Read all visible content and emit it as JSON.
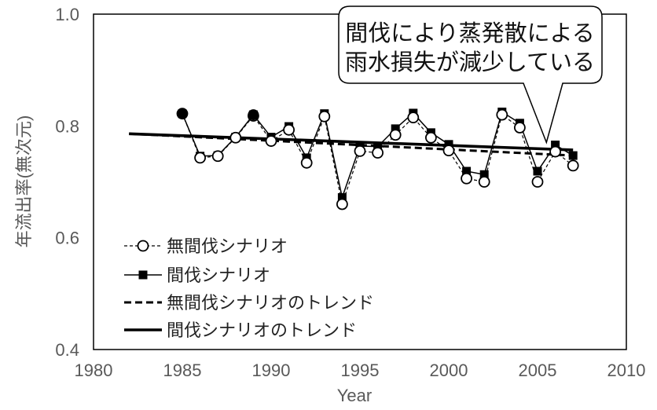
{
  "chart_data": {
    "type": "line",
    "xlabel": "Year",
    "ylabel": "年流出率(無次元)",
    "xlim": [
      1980,
      2010
    ],
    "ylim": [
      0.4,
      1.0
    ],
    "xticks": [
      "1980",
      "1985",
      "1990",
      "1995",
      "2000",
      "2005",
      "2010"
    ],
    "yticks": [
      "0.4",
      "0.6",
      "0.8",
      "1.0"
    ],
    "grid": false,
    "legend": "bottom-left",
    "x": [
      1985,
      1986,
      1987,
      1988,
      1989,
      1990,
      1991,
      1992,
      1993,
      1994,
      1995,
      1996,
      1997,
      1998,
      1999,
      2000,
      2001,
      2002,
      2003,
      2004,
      2005,
      2006,
      2007
    ],
    "series": [
      {
        "name": "無間伐シナリオ",
        "values": [
          0.822,
          0.743,
          0.746,
          0.779,
          0.818,
          0.773,
          0.793,
          0.734,
          0.817,
          0.66,
          0.755,
          0.752,
          0.784,
          0.815,
          0.779,
          0.756,
          0.706,
          0.7,
          0.82,
          0.797,
          0.7,
          0.754,
          0.729
        ]
      },
      {
        "name": "間伐シナリオ",
        "values": [
          0.822,
          0.746,
          0.747,
          0.78,
          0.82,
          0.78,
          0.799,
          0.743,
          0.822,
          0.672,
          0.764,
          0.763,
          0.795,
          0.823,
          0.788,
          0.767,
          0.719,
          0.713,
          0.825,
          0.805,
          0.719,
          0.766,
          0.747
        ]
      },
      {
        "name": "無間伐シナリオのトレンド",
        "trend": [
          [
            1982,
            0.786
          ],
          [
            2007,
            0.747
          ]
        ]
      },
      {
        "name": "間伐シナリオのトレンド",
        "trend": [
          [
            1982,
            0.786
          ],
          [
            2007,
            0.757
          ]
        ]
      }
    ],
    "annotation": {
      "lines": [
        "間伐により蒸発散による",
        "雨水損失が減少している"
      ],
      "pointer_year": 2005.5,
      "pointer_value": 0.762
    }
  }
}
